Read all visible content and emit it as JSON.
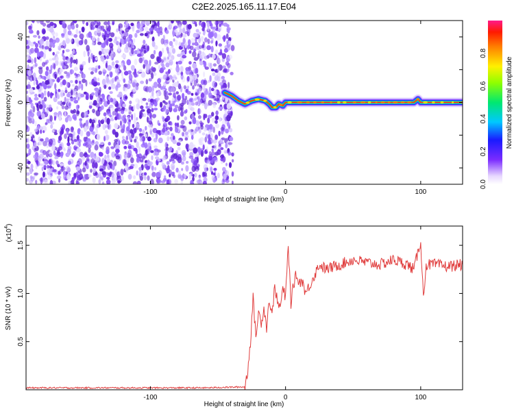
{
  "title": "C2E2.2025.165.11.17.E04",
  "chart_data": [
    {
      "type": "heatmap",
      "xlabel": "Height of straight line (km)",
      "ylabel": "Frequency (Hz)",
      "xlim": [
        -192,
        131
      ],
      "ylim": [
        -50,
        50
      ],
      "xticks": [
        -100,
        0,
        100
      ],
      "xtick_labels": [
        "-100",
        "0",
        "100"
      ],
      "yticks": [
        -40,
        -20,
        0,
        20,
        40
      ],
      "ytick_labels": [
        "-40",
        "-20",
        "0",
        "20",
        "40"
      ],
      "noise_region_x": [
        -192,
        -39
      ],
      "signal_line": {
        "x": [
          -45,
          -40,
          -35,
          -30,
          -25,
          -20,
          -15,
          -12,
          -10,
          -7,
          -5,
          -2,
          0,
          5,
          10,
          20,
          40,
          60,
          80,
          95,
          98,
          100,
          105,
          131
        ],
        "y": [
          6,
          4,
          1,
          -1,
          1,
          2,
          1,
          -1,
          -3,
          -3,
          -1,
          -2,
          0,
          0,
          0,
          0,
          0,
          0,
          0,
          0,
          2,
          0,
          0,
          0
        ]
      },
      "colorbar": {
        "label": "Normalized spectral amplitude",
        "range": [
          0,
          1
        ],
        "ticks": [
          0.0,
          0.2,
          0.4,
          0.6,
          0.8
        ],
        "tick_labels": [
          "0.0",
          "0.2",
          "0.4",
          "0.6",
          "0.8"
        ]
      }
    },
    {
      "type": "line",
      "xlabel": "Height of straight line (km)",
      "ylabel": "SNR (10 * v/v)",
      "yscale_label": "(x10",
      "yscale_exp": "4",
      "yscale_close": ")",
      "xlim": [
        -192,
        131
      ],
      "ylim": [
        0,
        1.7
      ],
      "xticks": [
        -100,
        0,
        100
      ],
      "xtick_labels": [
        "-100",
        "0",
        "100"
      ],
      "yticks": [
        0.5,
        1.0,
        1.5
      ],
      "ytick_labels": [
        "0.5",
        "1.0",
        "1.5"
      ],
      "series": [
        {
          "color": "#e03c3c",
          "x": [
            -192,
            -120,
            -60,
            -30,
            -28,
            -26,
            -24,
            -22,
            -20,
            -18,
            -16,
            -14,
            -12,
            -10,
            -8,
            -6,
            -4,
            -2,
            0,
            2,
            4,
            6,
            8,
            10,
            12,
            15,
            20,
            25,
            30,
            40,
            50,
            60,
            70,
            80,
            90,
            95,
            100,
            102,
            104,
            110,
            120,
            131
          ],
          "y": [
            0.02,
            0.02,
            0.02,
            0.03,
            0.2,
            0.5,
            0.95,
            0.55,
            0.8,
            0.7,
            0.85,
            0.65,
            0.95,
            0.75,
            1.1,
            0.9,
            0.85,
            1.05,
            0.95,
            1.5,
            0.9,
            1.1,
            1.2,
            1.1,
            1.15,
            1.0,
            1.15,
            1.3,
            1.25,
            1.3,
            1.35,
            1.32,
            1.3,
            1.35,
            1.3,
            1.25,
            1.55,
            0.95,
            1.3,
            1.3,
            1.28,
            1.3
          ],
          "noise": 0.06
        }
      ]
    }
  ]
}
